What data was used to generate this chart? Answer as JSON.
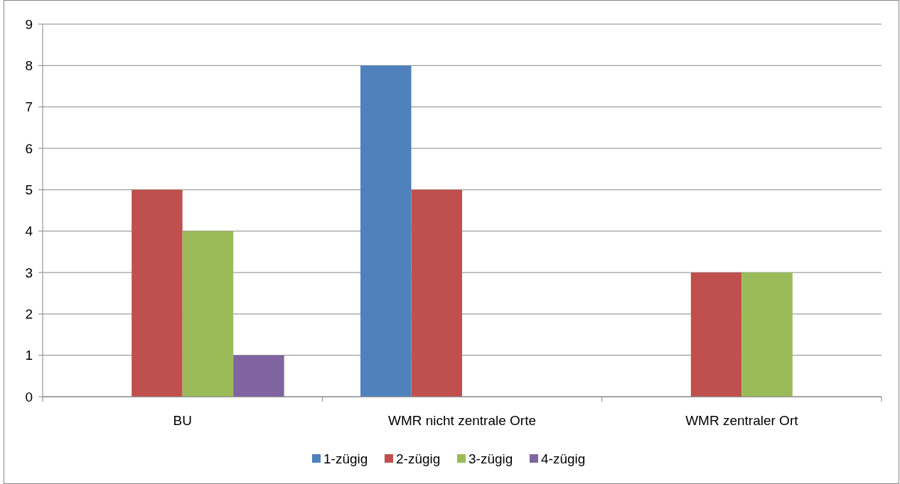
{
  "chart_data": {
    "type": "bar",
    "categories": [
      "BU",
      "WMR nicht zentrale Orte",
      "WMR zentraler Ort"
    ],
    "series": [
      {
        "name": "1-zügig",
        "color": "#4f81bd",
        "values": [
          0,
          8,
          0
        ]
      },
      {
        "name": "2-zügig",
        "color": "#c0504d",
        "values": [
          5,
          5,
          3
        ]
      },
      {
        "name": "3-zügig",
        "color": "#9bbb59",
        "values": [
          4,
          0,
          3
        ]
      },
      {
        "name": "4-zügig",
        "color": "#8064a2",
        "values": [
          1,
          0,
          0
        ]
      }
    ],
    "ylim": [
      0,
      9
    ],
    "yticks": [
      0,
      1,
      2,
      3,
      4,
      5,
      6,
      7,
      8,
      9
    ],
    "grid": "y",
    "legend": "bottom"
  }
}
